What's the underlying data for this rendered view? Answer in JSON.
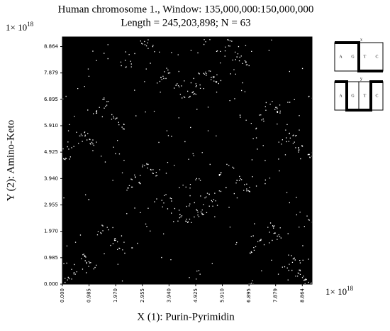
{
  "chart_data": {
    "type": "scatter",
    "title": "Human chromosome 1., Window: 135,000,000:150,000,000",
    "subtitle": "Length = 245,203,898; N = 63",
    "x_label": "X (1): Purin-Pyrimidin",
    "y_label": "Y (2): Amino-Keto",
    "x_multiplier": {
      "base": "1× 10",
      "exponent": "18"
    },
    "y_multiplier": {
      "base": "1× 10",
      "exponent": "18"
    },
    "xlim": [
      0,
      9.223
    ],
    "ylim": [
      0,
      9.223
    ],
    "xticks": [
      {
        "value": 0,
        "label": "0.000"
      },
      {
        "value": 0.985,
        "label": "0.985"
      },
      {
        "value": 1.97,
        "label": "1.970"
      },
      {
        "value": 2.955,
        "label": "2.955"
      },
      {
        "value": 3.94,
        "label": "3.940"
      },
      {
        "value": 4.925,
        "label": "4.925"
      },
      {
        "value": 5.91,
        "label": "5.910"
      },
      {
        "value": 6.895,
        "label": "6.895"
      },
      {
        "value": 7.879,
        "label": "7.879"
      },
      {
        "value": 8.864,
        "label": "8.864"
      }
    ],
    "yticks": [
      {
        "value": 0,
        "label": "0.000"
      },
      {
        "value": 0.985,
        "label": "0.985"
      },
      {
        "value": 1.97,
        "label": "1.970"
      },
      {
        "value": 2.955,
        "label": "2.955"
      },
      {
        "value": 3.94,
        "label": "3.940"
      },
      {
        "value": 4.925,
        "label": "4.925"
      },
      {
        "value": 5.91,
        "label": "5.910"
      },
      {
        "value": 6.895,
        "label": "6.895"
      },
      {
        "value": 7.879,
        "label": "7.879"
      },
      {
        "value": 8.864,
        "label": "8.864"
      }
    ]
  },
  "inset": [
    {
      "label": "x",
      "letters": [
        "A",
        "G",
        "T",
        "C"
      ]
    },
    {
      "label": "y",
      "letters": [
        "A",
        "G",
        "T",
        "C"
      ]
    }
  ]
}
